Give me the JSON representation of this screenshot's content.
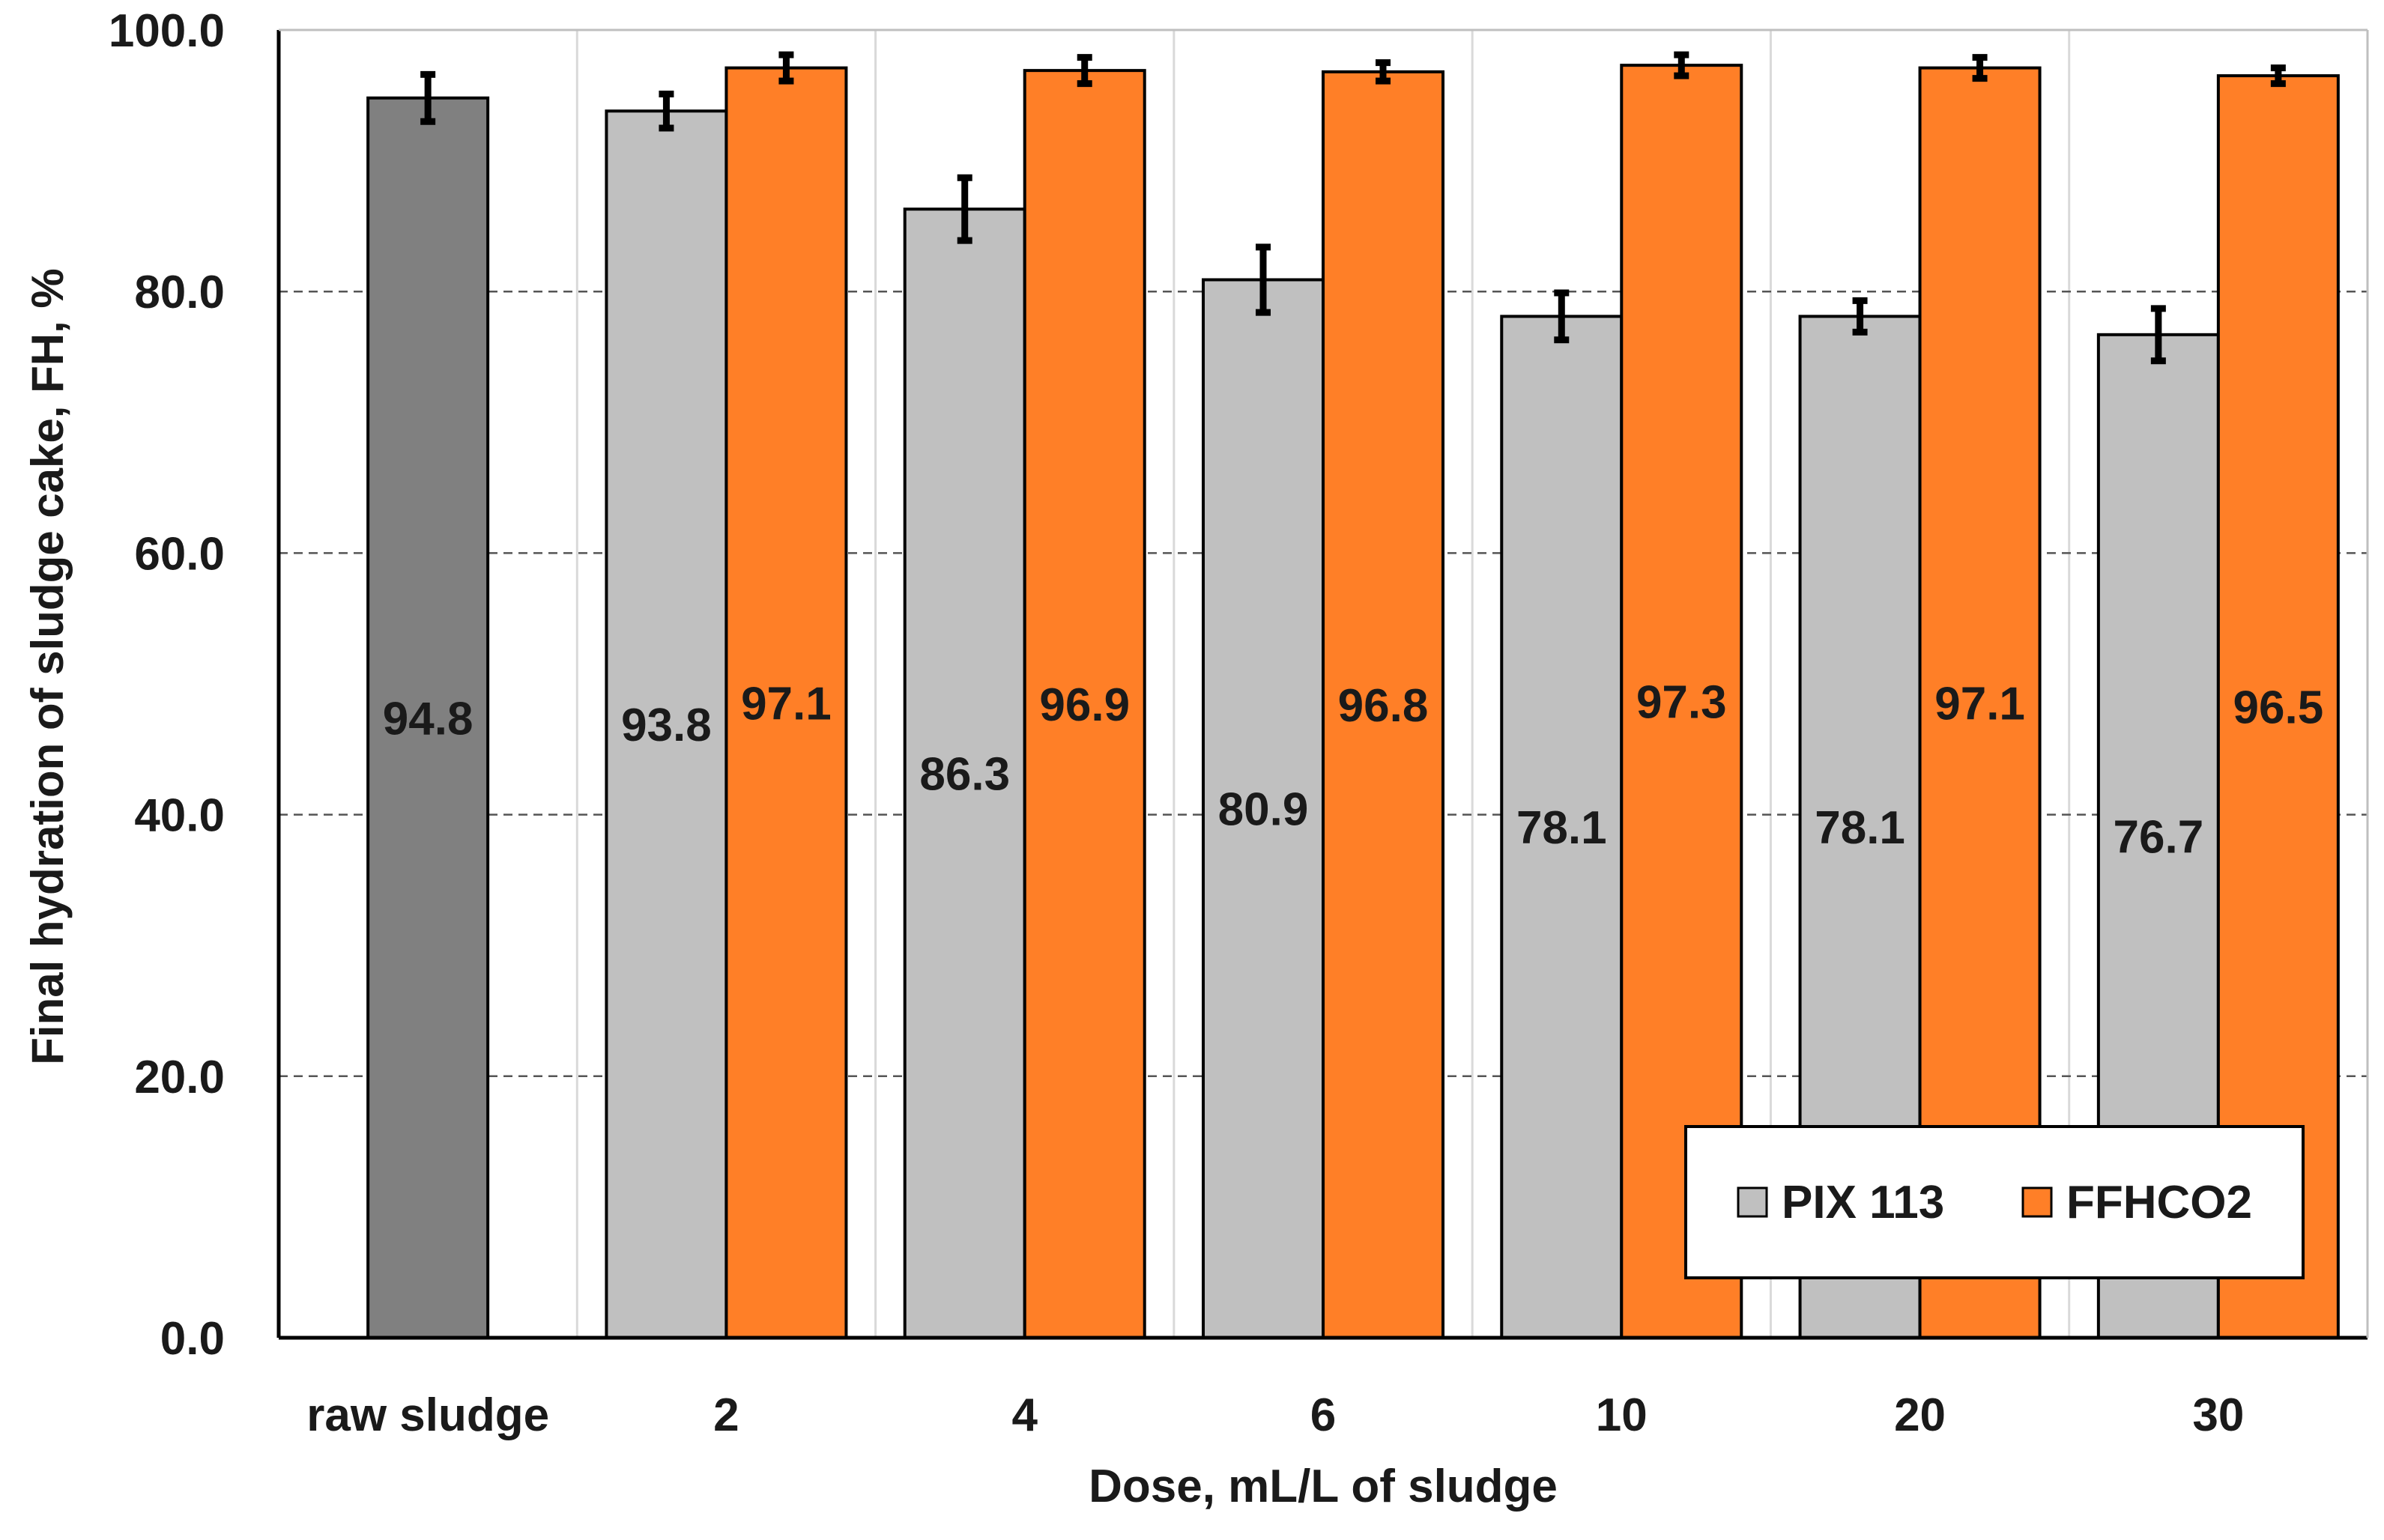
{
  "chart_data": {
    "type": "bar",
    "title": "",
    "xlabel": "Dose, mL/L of sludge",
    "ylabel": "Final hydration of sludge cake, FH, %",
    "ylim": [
      0,
      100
    ],
    "y_ticks": [
      "0.0",
      "20.0",
      "40.0",
      "60.0",
      "80.0",
      "100.0"
    ],
    "y_tick_values": [
      0,
      20,
      40,
      60,
      80,
      100
    ],
    "grid": "horizontal dashed",
    "legend_position": "bottom-right",
    "categories": [
      "raw sludge",
      "2",
      "4",
      "6",
      "10",
      "20",
      "30"
    ],
    "series": [
      {
        "name": "raw sludge",
        "show_in_legend": false,
        "color": "#808080",
        "values": [
          94.8,
          null,
          null,
          null,
          null,
          null,
          null
        ],
        "labels": [
          "94.8",
          null,
          null,
          null,
          null,
          null,
          null
        ],
        "errors": [
          1.8,
          null,
          null,
          null,
          null,
          null,
          null
        ]
      },
      {
        "name": "PIX 113",
        "show_in_legend": true,
        "color": "#c0c0c0",
        "values": [
          null,
          93.8,
          86.3,
          80.9,
          78.1,
          78.1,
          76.7
        ],
        "labels": [
          null,
          "93.8",
          "86.3",
          "80.9",
          "78.1",
          "78.1",
          "76.7"
        ],
        "errors": [
          null,
          1.3,
          2.4,
          2.5,
          1.8,
          1.2,
          2.0
        ]
      },
      {
        "name": "FFHCO2",
        "show_in_legend": true,
        "color": "#ff7f27",
        "values": [
          null,
          97.1,
          96.9,
          96.8,
          97.3,
          97.1,
          96.5
        ],
        "labels": [
          null,
          "97.1",
          "96.9",
          "96.8",
          "97.3",
          "97.1",
          "96.5"
        ],
        "errors": [
          null,
          1.0,
          1.0,
          0.7,
          0.8,
          0.8,
          0.6
        ]
      }
    ]
  }
}
